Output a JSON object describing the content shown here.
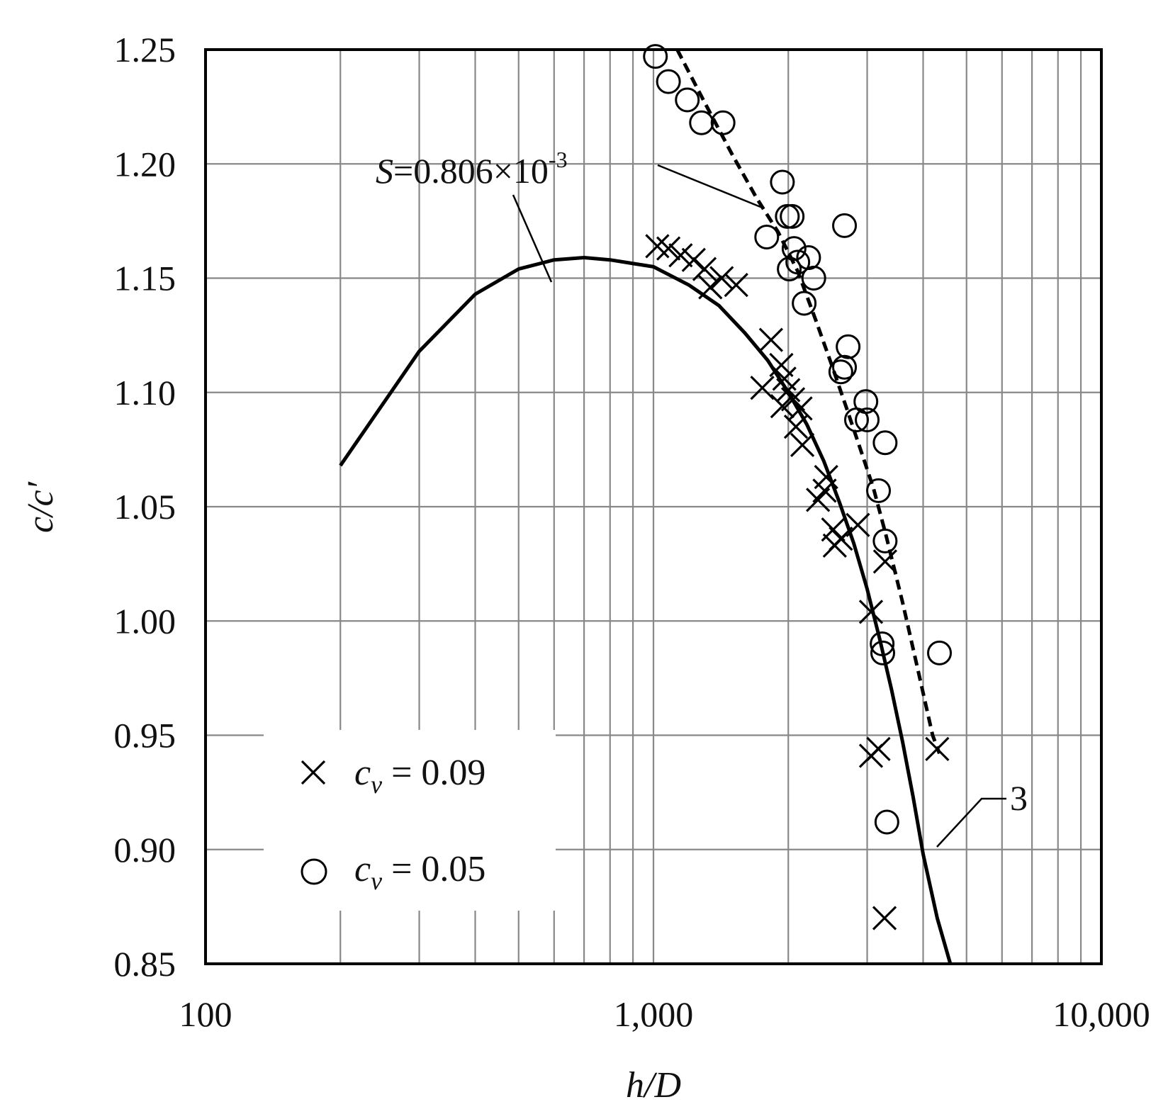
{
  "chart_data": {
    "type": "scatter",
    "xlabel": "h/D",
    "ylabel": "c/c′",
    "xscale": "log",
    "xlim": [
      100,
      10000
    ],
    "ylim": [
      0.85,
      1.25
    ],
    "grid": true,
    "legend_position": "bottom-left",
    "x_tick_labels": [
      "100",
      "1,000",
      "10,000"
    ],
    "y_tick_labels": [
      "1.25",
      "1.20",
      "1.15",
      "1.10",
      "1.05",
      "1.00",
      "0.95",
      "0.90",
      "0.85"
    ],
    "annotations": [
      {
        "text_prefix": "S",
        "text_body": "=0.806×10",
        "text_sup": "-3",
        "refers_to": "dashed curve"
      },
      {
        "text": "3",
        "refers_to": "solid curve"
      }
    ],
    "series": [
      {
        "name": "c_v = 0.09",
        "legend_symbol": "c",
        "legend_subscript": "v",
        "legend_value": " = 0.09",
        "marker": "x",
        "points": [
          [
            1020,
            1.164
          ],
          [
            1080,
            1.163
          ],
          [
            1150,
            1.16
          ],
          [
            1230,
            1.158
          ],
          [
            1300,
            1.154
          ],
          [
            1340,
            1.146
          ],
          [
            1420,
            1.15
          ],
          [
            1530,
            1.147
          ],
          [
            1830,
            1.123
          ],
          [
            1750,
            1.102
          ],
          [
            1930,
            1.112
          ],
          [
            1960,
            1.106
          ],
          [
            2000,
            1.101
          ],
          [
            1940,
            1.094
          ],
          [
            2050,
            1.097
          ],
          [
            2130,
            1.093
          ],
          [
            2080,
            1.085
          ],
          [
            2150,
            1.077
          ],
          [
            2430,
            1.063
          ],
          [
            2410,
            1.057
          ],
          [
            2330,
            1.053
          ],
          [
            2520,
            1.04
          ],
          [
            2540,
            1.033
          ],
          [
            2620,
            1.036
          ],
          [
            2860,
            1.042
          ],
          [
            3060,
            1.004
          ],
          [
            3290,
            1.026
          ],
          [
            3060,
            0.941
          ],
          [
            3180,
            0.944
          ],
          [
            4300,
            0.944
          ],
          [
            3280,
            0.87
          ]
        ]
      },
      {
        "name": "c_v = 0.05",
        "legend_symbol": "c",
        "legend_subscript": "v",
        "legend_value": " = 0.05",
        "marker": "o",
        "points": [
          [
            1010,
            1.247
          ],
          [
            1080,
            1.236
          ],
          [
            1190,
            1.228
          ],
          [
            1280,
            1.218
          ],
          [
            1430,
            1.218
          ],
          [
            1940,
            1.192
          ],
          [
            1990,
            1.177
          ],
          [
            2040,
            1.177
          ],
          [
            1790,
            1.168
          ],
          [
            2060,
            1.163
          ],
          [
            2220,
            1.159
          ],
          [
            2100,
            1.157
          ],
          [
            2010,
            1.154
          ],
          [
            2280,
            1.15
          ],
          [
            2170,
            1.139
          ],
          [
            2670,
            1.173
          ],
          [
            2720,
            1.12
          ],
          [
            2670,
            1.111
          ],
          [
            2620,
            1.109
          ],
          [
            2840,
            1.088
          ],
          [
            2980,
            1.096
          ],
          [
            3000,
            1.088
          ],
          [
            3290,
            1.078
          ],
          [
            3180,
            1.057
          ],
          [
            3290,
            1.035
          ],
          [
            3240,
            0.99
          ],
          [
            3250,
            0.986
          ],
          [
            4350,
            0.986
          ],
          [
            3320,
            0.912
          ]
        ]
      }
    ],
    "curves": [
      {
        "name": "3",
        "style": "solid",
        "points": [
          [
            200,
            1.068
          ],
          [
            300,
            1.118
          ],
          [
            400,
            1.143
          ],
          [
            500,
            1.154
          ],
          [
            600,
            1.158
          ],
          [
            700,
            1.159
          ],
          [
            800,
            1.158
          ],
          [
            1000,
            1.155
          ],
          [
            1200,
            1.147
          ],
          [
            1400,
            1.138
          ],
          [
            1600,
            1.126
          ],
          [
            1800,
            1.114
          ],
          [
            2000,
            1.1
          ],
          [
            2200,
            1.086
          ],
          [
            2400,
            1.07
          ],
          [
            2600,
            1.052
          ],
          [
            2800,
            1.034
          ],
          [
            3000,
            1.014
          ],
          [
            3200,
            0.992
          ],
          [
            3400,
            0.97
          ],
          [
            3600,
            0.947
          ],
          [
            3800,
            0.923
          ],
          [
            4000,
            0.898
          ],
          [
            4300,
            0.87
          ],
          [
            4600,
            0.85
          ]
        ]
      },
      {
        "name": "S=0.806×10-3",
        "style": "dashed",
        "points": [
          [
            1130,
            1.25
          ],
          [
            1300,
            1.227
          ],
          [
            1500,
            1.204
          ],
          [
            1700,
            1.185
          ],
          [
            1900,
            1.17
          ],
          [
            2100,
            1.153
          ],
          [
            2300,
            1.132
          ],
          [
            2500,
            1.112
          ],
          [
            2700,
            1.093
          ],
          [
            2900,
            1.075
          ],
          [
            3100,
            1.058
          ],
          [
            3300,
            1.038
          ],
          [
            3600,
            1.008
          ],
          [
            3900,
            0.978
          ],
          [
            4200,
            0.95
          ],
          [
            4350,
            0.942
          ]
        ]
      }
    ]
  }
}
